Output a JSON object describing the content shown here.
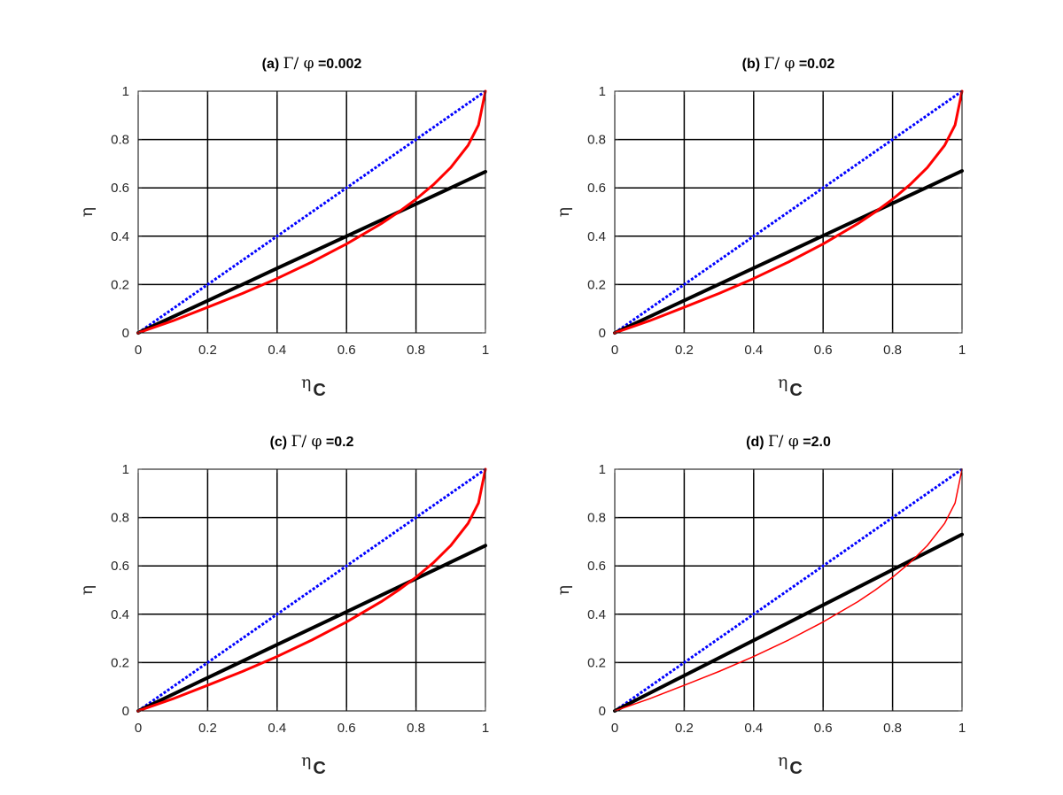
{
  "chart_data": [
    {
      "type": "line",
      "panel": "(a)",
      "title_prefix": "(a)",
      "title_symbol": "Γ/  φ",
      "title_value": "=0.002",
      "xlabel": "η",
      "xlabel_sub": "C",
      "ylabel": "η",
      "xlim": [
        0,
        1
      ],
      "ylim": [
        0,
        1
      ],
      "xticks": [
        "0",
        "0.2",
        "0.4",
        "0.6",
        "0.8",
        "1"
      ],
      "yticks": [
        "0",
        "0.2",
        "0.4",
        "0.6",
        "0.8",
        "1"
      ],
      "grid": true,
      "series": [
        {
          "color": "#0000ff",
          "style": "dotted",
          "width": 3,
          "x": [
            0,
            0.2,
            0.4,
            0.6,
            0.8,
            1.0
          ],
          "y": [
            0,
            0.2,
            0.4,
            0.6,
            0.8,
            1.0
          ]
        },
        {
          "color": "#000000",
          "style": "solid",
          "width": 4,
          "x": [
            0,
            0.2,
            0.4,
            0.6,
            0.8,
            1.0
          ],
          "y": [
            0,
            0.133,
            0.267,
            0.4,
            0.533,
            0.667
          ]
        },
        {
          "color": "#ff0000",
          "style": "solid",
          "width": 3,
          "x": [
            0,
            0.1,
            0.2,
            0.3,
            0.4,
            0.5,
            0.6,
            0.7,
            0.75,
            0.8,
            0.85,
            0.9,
            0.95,
            0.98,
            1.0
          ],
          "y": [
            0,
            0.05,
            0.106,
            0.163,
            0.225,
            0.293,
            0.368,
            0.452,
            0.5,
            0.553,
            0.613,
            0.684,
            0.776,
            0.86,
            1.0
          ]
        }
      ]
    },
    {
      "type": "line",
      "panel": "(b)",
      "title_prefix": "(b)",
      "title_symbol": "Γ/  φ",
      "title_value": "=0.02",
      "xlabel": "η",
      "xlabel_sub": "C",
      "ylabel": "η",
      "xlim": [
        0,
        1
      ],
      "ylim": [
        0,
        1
      ],
      "xticks": [
        "0",
        "0.2",
        "0.4",
        "0.6",
        "0.8",
        "1"
      ],
      "yticks": [
        "0",
        "0.2",
        "0.4",
        "0.6",
        "0.8",
        "1"
      ],
      "grid": true,
      "series": [
        {
          "color": "#0000ff",
          "style": "dotted",
          "width": 3,
          "x": [
            0,
            0.2,
            0.4,
            0.6,
            0.8,
            1.0
          ],
          "y": [
            0,
            0.2,
            0.4,
            0.6,
            0.8,
            1.0
          ]
        },
        {
          "color": "#000000",
          "style": "solid",
          "width": 4,
          "x": [
            0,
            0.2,
            0.4,
            0.6,
            0.8,
            1.0
          ],
          "y": [
            0,
            0.134,
            0.268,
            0.402,
            0.536,
            0.67
          ]
        },
        {
          "color": "#ff0000",
          "style": "solid",
          "width": 3,
          "x": [
            0,
            0.1,
            0.2,
            0.3,
            0.4,
            0.5,
            0.6,
            0.7,
            0.75,
            0.8,
            0.85,
            0.9,
            0.95,
            0.98,
            1.0
          ],
          "y": [
            0,
            0.05,
            0.106,
            0.163,
            0.225,
            0.293,
            0.368,
            0.452,
            0.5,
            0.553,
            0.613,
            0.684,
            0.776,
            0.86,
            1.0
          ]
        }
      ]
    },
    {
      "type": "line",
      "panel": "(c)",
      "title_prefix": "(c)",
      "title_symbol": "Γ/  φ",
      "title_value": "=0.2",
      "xlabel": "η",
      "xlabel_sub": "C",
      "ylabel": "η",
      "xlim": [
        0,
        1
      ],
      "ylim": [
        0,
        1
      ],
      "xticks": [
        "0",
        "0.2",
        "0.4",
        "0.6",
        "0.8",
        "1"
      ],
      "yticks": [
        "0",
        "0.2",
        "0.4",
        "0.6",
        "0.8",
        "1"
      ],
      "grid": true,
      "series": [
        {
          "color": "#0000ff",
          "style": "dotted",
          "width": 3,
          "x": [
            0,
            0.2,
            0.4,
            0.6,
            0.8,
            1.0
          ],
          "y": [
            0,
            0.2,
            0.4,
            0.6,
            0.8,
            1.0
          ]
        },
        {
          "color": "#000000",
          "style": "solid",
          "width": 4,
          "x": [
            0,
            0.2,
            0.4,
            0.6,
            0.8,
            1.0
          ],
          "y": [
            0,
            0.137,
            0.274,
            0.41,
            0.547,
            0.684
          ]
        },
        {
          "color": "#ff0000",
          "style": "solid",
          "width": 3,
          "x": [
            0,
            0.1,
            0.2,
            0.3,
            0.4,
            0.5,
            0.6,
            0.7,
            0.75,
            0.8,
            0.85,
            0.9,
            0.95,
            0.98,
            1.0
          ],
          "y": [
            0,
            0.05,
            0.106,
            0.163,
            0.225,
            0.293,
            0.368,
            0.452,
            0.5,
            0.553,
            0.613,
            0.684,
            0.776,
            0.86,
            1.0
          ]
        }
      ]
    },
    {
      "type": "line",
      "panel": "(d)",
      "title_prefix": "(d)",
      "title_symbol": "Γ/  φ",
      "title_value": "=2.0",
      "xlabel": "η",
      "xlabel_sub": "C",
      "ylabel": "η",
      "xlim": [
        0,
        1
      ],
      "ylim": [
        0,
        1
      ],
      "xticks": [
        "0",
        "0.2",
        "0.4",
        "0.6",
        "0.8",
        "1"
      ],
      "yticks": [
        "0",
        "0.2",
        "0.4",
        "0.6",
        "0.8",
        "1"
      ],
      "grid": true,
      "series": [
        {
          "color": "#0000ff",
          "style": "dotted",
          "width": 3,
          "x": [
            0,
            0.2,
            0.4,
            0.6,
            0.8,
            1.0
          ],
          "y": [
            0,
            0.2,
            0.4,
            0.6,
            0.8,
            1.0
          ]
        },
        {
          "color": "#000000",
          "style": "solid",
          "width": 4,
          "x": [
            0,
            0.2,
            0.4,
            0.6,
            0.8,
            1.0
          ],
          "y": [
            0,
            0.146,
            0.292,
            0.438,
            0.584,
            0.73
          ]
        },
        {
          "color": "#ff0000",
          "style": "solid",
          "width": 1.5,
          "x": [
            0,
            0.1,
            0.2,
            0.3,
            0.4,
            0.5,
            0.6,
            0.7,
            0.75,
            0.8,
            0.85,
            0.9,
            0.95,
            0.98,
            1.0
          ],
          "y": [
            0,
            0.05,
            0.106,
            0.163,
            0.225,
            0.293,
            0.368,
            0.452,
            0.5,
            0.553,
            0.613,
            0.684,
            0.776,
            0.86,
            1.0
          ]
        }
      ]
    }
  ]
}
